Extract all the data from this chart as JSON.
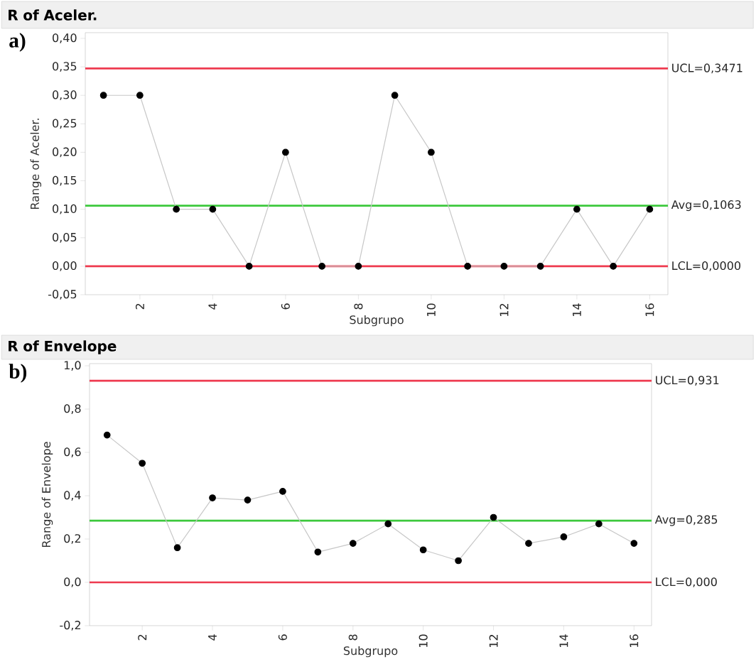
{
  "chart_data": [
    {
      "type": "line",
      "title": "R of Aceler.",
      "xlabel": "Subgrupo",
      "ylabel": "Range of Aceler.",
      "annotations": [
        "a)"
      ],
      "x": [
        1,
        2,
        3,
        4,
        5,
        6,
        7,
        8,
        9,
        10,
        11,
        12,
        13,
        14,
        15,
        16
      ],
      "series": [
        {
          "color": "#000000",
          "values": [
            0.3,
            0.3,
            0.1,
            0.1,
            0,
            0.2,
            0,
            0,
            0.3,
            0.2,
            0,
            0,
            0,
            0.1,
            0,
            0.1
          ]
        }
      ],
      "xlim": [
        0.5,
        16.5
      ],
      "ylim": [
        -0.05,
        0.41
      ],
      "xticks": [
        2,
        4,
        6,
        8,
        10,
        12,
        14,
        16
      ],
      "yticks": [
        {
          "value": -0.05,
          "label": "-0,05"
        },
        {
          "value": 0,
          "label": "0,00"
        },
        {
          "value": 0.05,
          "label": "0,05"
        },
        {
          "value": 0.1,
          "label": "0,10"
        },
        {
          "value": 0.15,
          "label": "0,15"
        },
        {
          "value": 0.2,
          "label": "0,20"
        },
        {
          "value": 0.25,
          "label": "0,25"
        },
        {
          "value": 0.3,
          "label": "0,30"
        },
        {
          "value": 0.35,
          "label": "0,35"
        },
        {
          "value": 0.4,
          "label": "0,40"
        }
      ],
      "ref_lines": [
        {
          "axis": "y",
          "value": 0.3471,
          "label": "UCL=0,3471",
          "color": "#ee3a4f"
        },
        {
          "axis": "y",
          "value": 0.1063,
          "label": "Avg=0,1063",
          "color": "#3cc83c"
        },
        {
          "axis": "y",
          "value": 0,
          "label": "LCL=0,0000",
          "color": "#ee3a4f"
        }
      ],
      "marker": "circle",
      "line_style": "solid"
    },
    {
      "type": "line",
      "title": "R of Envelope",
      "xlabel": "Subgrupo",
      "ylabel": "Range of Envelope",
      "annotations": [
        "b)"
      ],
      "x": [
        1,
        2,
        3,
        4,
        5,
        6,
        7,
        8,
        9,
        10,
        11,
        12,
        13,
        14,
        15,
        16
      ],
      "series": [
        {
          "color": "#000000",
          "values": [
            0.68,
            0.55,
            0.16,
            0.39,
            0.38,
            0.42,
            0.14,
            0.18,
            0.27,
            0.15,
            0.1,
            0.3,
            0.18,
            0.21,
            0.27,
            0.18
          ]
        }
      ],
      "xlim": [
        0.5,
        16.5
      ],
      "ylim": [
        -0.2,
        1.01
      ],
      "xticks": [
        2,
        4,
        6,
        8,
        10,
        12,
        14,
        16
      ],
      "yticks": [
        {
          "value": -0.2,
          "label": "-0,2"
        },
        {
          "value": 0,
          "label": "0,0"
        },
        {
          "value": 0.2,
          "label": "0,2"
        },
        {
          "value": 0.4,
          "label": "0,4"
        },
        {
          "value": 0.6,
          "label": "0,6"
        },
        {
          "value": 0.8,
          "label": "0,8"
        },
        {
          "value": 1.0,
          "label": "1,0"
        }
      ],
      "ref_lines": [
        {
          "axis": "y",
          "value": 0.931,
          "label": "UCL=0,931",
          "color": "#ee3a4f"
        },
        {
          "axis": "y",
          "value": 0.285,
          "label": "Avg=0,285",
          "color": "#3cc83c"
        },
        {
          "axis": "y",
          "value": 0,
          "label": "LCL=0,000",
          "color": "#ee3a4f"
        }
      ],
      "marker": "circle",
      "line_style": "solid"
    }
  ]
}
